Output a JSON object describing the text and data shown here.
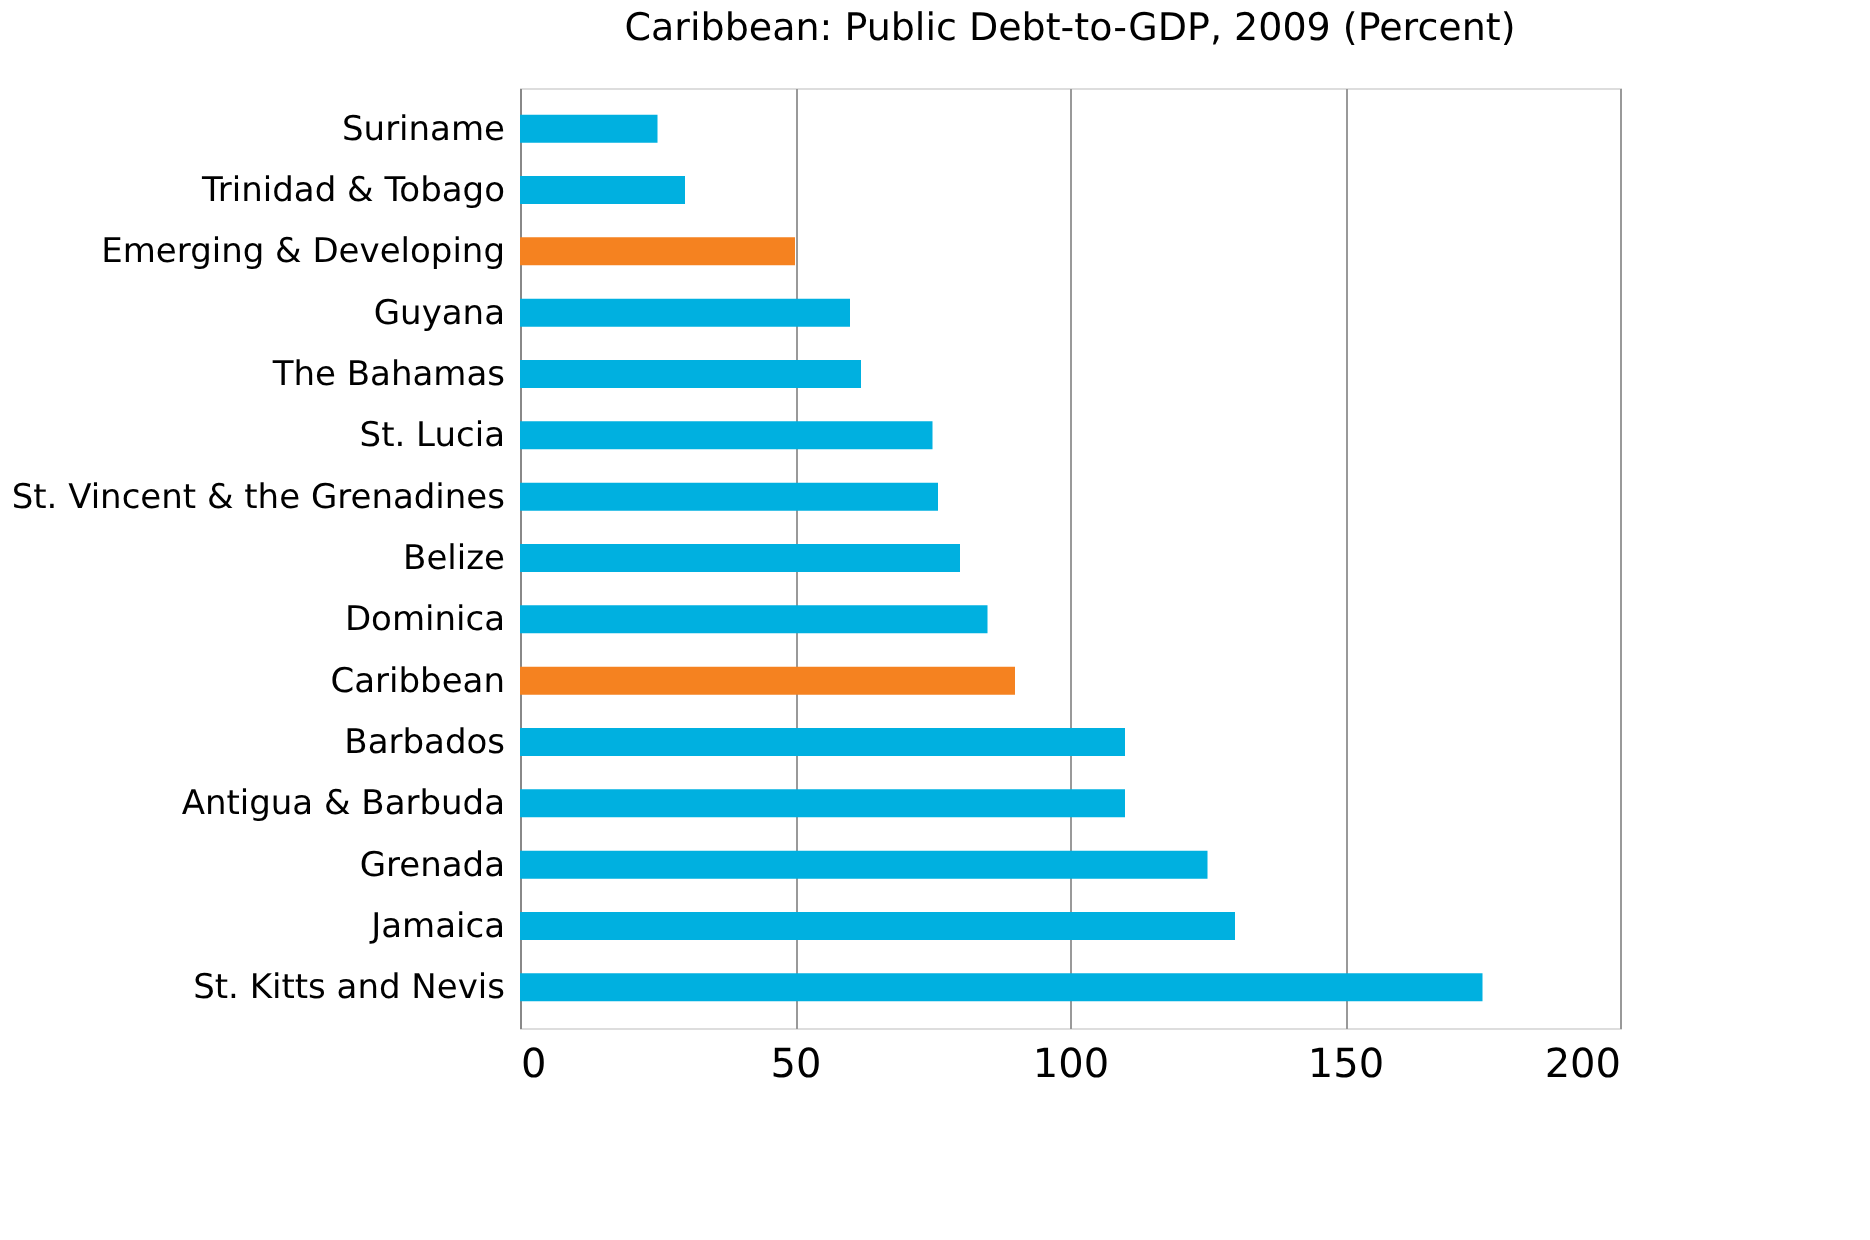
{
  "chart_data": {
    "type": "bar",
    "orientation": "horizontal",
    "title": "Caribbean: Public Debt-to-GDP, 2009 (Percent)",
    "categories": [
      "Suriname",
      "Trinidad & Tobago",
      "Emerging & Developing",
      "Guyana",
      "The Bahamas",
      "St. Lucia",
      "St. Vincent & the Grenadines",
      "Belize",
      "Dominica",
      "Caribbean",
      "Barbados",
      "Antigua & Barbuda",
      "Grenada",
      "Jamaica",
      "St. Kitts and Nevis"
    ],
    "values": [
      25,
      30,
      50,
      60,
      62,
      75,
      76,
      80,
      85,
      90,
      110,
      110,
      125,
      130,
      175
    ],
    "colors": [
      "#00b0e0",
      "#00b0e0",
      "#f58220",
      "#00b0e0",
      "#00b0e0",
      "#00b0e0",
      "#00b0e0",
      "#00b0e0",
      "#00b0e0",
      "#f58220",
      "#00b0e0",
      "#00b0e0",
      "#00b0e0",
      "#00b0e0",
      "#00b0e0"
    ],
    "xlim": [
      0,
      200
    ],
    "xticks": [
      0,
      50,
      100,
      150,
      200
    ],
    "grid": "x"
  }
}
